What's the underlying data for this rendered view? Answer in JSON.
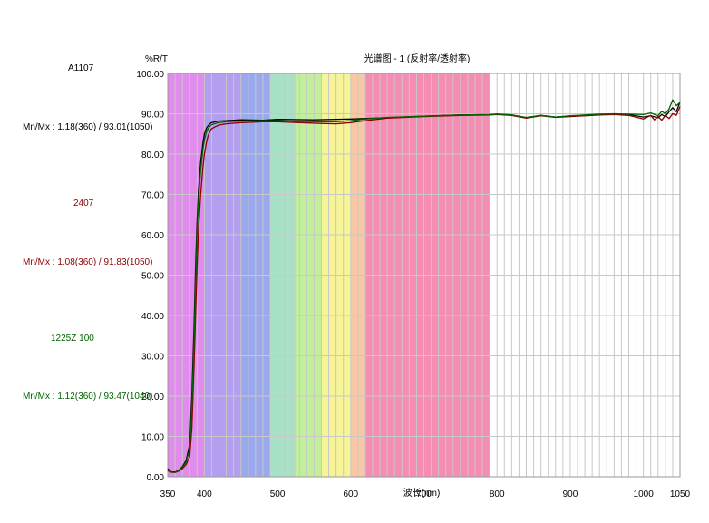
{
  "chart_data": {
    "type": "line",
    "title": "光谱图 - 1 (反射率/透射率)",
    "ylabel": "%R/T",
    "xlabel": "波长(nm)",
    "xlim": [
      350,
      1050
    ],
    "ylim": [
      0,
      100
    ],
    "x_ticks": [
      350,
      400,
      500,
      600,
      700,
      800,
      900,
      1000,
      1050
    ],
    "y_ticks": [
      "0.00",
      "10.00",
      "20.00",
      "30.00",
      "40.00",
      "50.00",
      "60.00",
      "70.00",
      "80.00",
      "90.00",
      "100.00"
    ],
    "grid": true,
    "legend_placement": "left",
    "background_bands": [
      {
        "from": 350,
        "to": 400,
        "color": "#e08cec"
      },
      {
        "from": 400,
        "to": 450,
        "color": "#b49ef0"
      },
      {
        "from": 450,
        "to": 490,
        "color": "#9aa8ee"
      },
      {
        "from": 490,
        "to": 525,
        "color": "#a8e2c6"
      },
      {
        "from": 525,
        "to": 560,
        "color": "#c2f09a"
      },
      {
        "from": 560,
        "to": 600,
        "color": "#f6f496"
      },
      {
        "from": 600,
        "to": 620,
        "color": "#f8c8a6"
      },
      {
        "from": 620,
        "to": 790,
        "color": "#f48cb4"
      }
    ],
    "legend": [
      {
        "name": "A1107",
        "stats": "Mn/Mx : 1.18(360) / 93.01(1050)",
        "color": "#000000"
      },
      {
        "name": "2407",
        "stats": "Mn/Mx : 1.08(360) / 91.83(1050)",
        "color": "#8b0000"
      },
      {
        "name": "1225Z  100",
        "stats": "Mn/Mx : 1.12(360) / 93.47(1040)",
        "color": "#006400"
      }
    ],
    "series": [
      {
        "color": "#000000",
        "x": [
          350,
          355,
          360,
          365,
          370,
          375,
          380,
          383,
          386,
          388,
          390,
          392,
          395,
          398,
          400,
          403,
          405,
          408,
          410,
          415,
          420,
          430,
          450,
          480,
          500,
          550,
          600,
          650,
          700,
          750,
          790,
          800,
          820,
          840,
          860,
          880,
          900,
          920,
          940,
          960,
          980,
          1000,
          1010,
          1020,
          1025,
          1030,
          1035,
          1040,
          1045,
          1050
        ],
        "y": [
          2.0,
          1.2,
          1.18,
          1.6,
          2.5,
          4.0,
          8.0,
          20.0,
          38.0,
          52.0,
          63.0,
          71.0,
          78.0,
          82.5,
          85.0,
          86.5,
          87.0,
          87.6,
          87.8,
          88.0,
          88.2,
          88.3,
          88.5,
          88.4,
          88.6,
          88.5,
          88.7,
          89.0,
          89.4,
          89.7,
          89.8,
          89.9,
          89.7,
          89.0,
          89.6,
          89.2,
          89.4,
          89.6,
          89.8,
          89.9,
          89.8,
          89.2,
          89.5,
          89.0,
          89.8,
          89.3,
          90.5,
          91.5,
          90.5,
          93.01
        ]
      },
      {
        "color": "#8b0000",
        "x": [
          350,
          355,
          360,
          365,
          370,
          375,
          380,
          383,
          386,
          388,
          390,
          392,
          395,
          398,
          400,
          403,
          405,
          408,
          410,
          415,
          420,
          430,
          450,
          480,
          500,
          530,
          560,
          580,
          600,
          620,
          650,
          700,
          750,
          790,
          800,
          820,
          840,
          860,
          880,
          900,
          920,
          940,
          960,
          980,
          1000,
          1010,
          1015,
          1020,
          1025,
          1030,
          1035,
          1040,
          1045,
          1050
        ],
        "y": [
          1.5,
          1.1,
          1.08,
          1.4,
          2.0,
          3.0,
          5.0,
          12.0,
          28.0,
          40.0,
          52.0,
          61.0,
          70.0,
          76.5,
          80.0,
          83.0,
          84.5,
          85.8,
          86.3,
          86.8,
          87.2,
          87.5,
          87.8,
          88.0,
          88.0,
          87.8,
          87.6,
          87.5,
          87.8,
          88.3,
          88.9,
          89.3,
          89.6,
          89.7,
          89.8,
          89.6,
          88.9,
          89.5,
          89.1,
          89.3,
          89.5,
          89.7,
          89.8,
          89.6,
          88.7,
          89.6,
          88.5,
          89.3,
          88.4,
          89.6,
          88.8,
          90.0,
          89.6,
          91.83
        ]
      },
      {
        "color": "#006400",
        "x": [
          350,
          355,
          360,
          365,
          370,
          375,
          380,
          383,
          386,
          388,
          390,
          392,
          395,
          398,
          400,
          403,
          405,
          408,
          410,
          415,
          420,
          430,
          450,
          480,
          500,
          530,
          560,
          580,
          600,
          620,
          650,
          700,
          750,
          790,
          800,
          820,
          840,
          860,
          880,
          900,
          920,
          940,
          960,
          980,
          1000,
          1010,
          1020,
          1025,
          1030,
          1035,
          1040,
          1045,
          1050
        ],
        "y": [
          1.8,
          1.15,
          1.12,
          1.5,
          2.3,
          3.6,
          7.0,
          17.0,
          34.0,
          48.0,
          60.0,
          68.5,
          76.0,
          81.0,
          83.5,
          85.5,
          86.3,
          87.0,
          87.3,
          87.6,
          87.8,
          88.0,
          88.2,
          88.3,
          88.3,
          88.1,
          88.0,
          88.0,
          88.3,
          88.7,
          89.1,
          89.4,
          89.7,
          89.8,
          89.9,
          89.7,
          89.1,
          89.6,
          89.2,
          89.5,
          89.7,
          89.9,
          90.0,
          89.9,
          89.8,
          90.2,
          89.5,
          90.6,
          90.0,
          91.2,
          93.47,
          92.0,
          92.8
        ]
      }
    ]
  }
}
